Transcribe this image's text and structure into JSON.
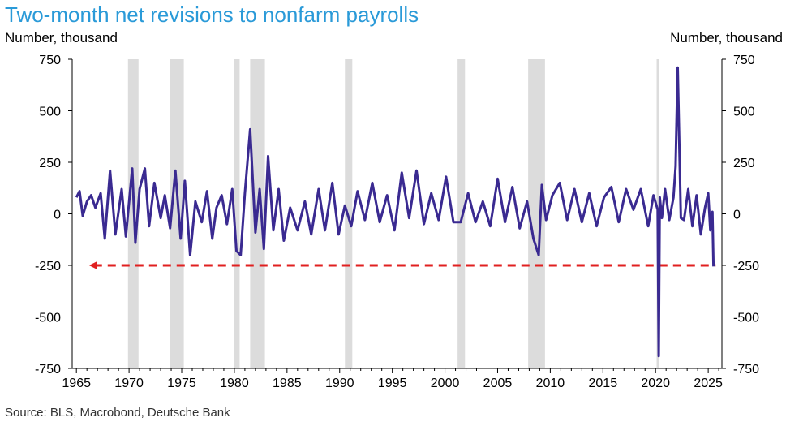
{
  "chart_data": {
    "type": "line",
    "title": "Two-month net revisions to nonfarm payrolls",
    "ylabel_left": "Number, thousand",
    "ylabel_right": "Number, thousand",
    "source": "Source: BLS, Macrobond, Deutsche Bank",
    "ylim": [
      -750,
      750
    ],
    "yticks": [
      750,
      500,
      250,
      0,
      -250,
      -500,
      -750
    ],
    "xlim": [
      1964.6,
      2026.3
    ],
    "xticks": [
      1965,
      1970,
      1975,
      1980,
      1985,
      1990,
      1995,
      2000,
      2005,
      2010,
      2015,
      2020,
      2025
    ],
    "grid": false,
    "colors": {
      "series": "#3a2a91",
      "recession": "#dcdcdc",
      "reference": "#e02020",
      "title": "#2a9ad8"
    },
    "recessions": [
      [
        1969.9,
        1970.9
      ],
      [
        1973.9,
        1975.2
      ],
      [
        1980.0,
        1980.5
      ],
      [
        1981.5,
        1982.9
      ],
      [
        1990.5,
        1991.2
      ],
      [
        2001.2,
        2001.9
      ],
      [
        2007.9,
        2009.5
      ],
      [
        2020.1,
        2020.3
      ]
    ],
    "reference_line": {
      "value": -250,
      "x_start": 1966.2,
      "x_end": 2025.7,
      "style": "dashed",
      "arrow": "left"
    },
    "series": [
      {
        "x": [
          1965.0,
          1965.3,
          1965.6,
          1966.0,
          1966.4,
          1966.8,
          1967.3,
          1967.7,
          1968.2,
          1968.7,
          1969.3,
          1969.7,
          1970.3,
          1970.6,
          1971.0,
          1971.5,
          1971.9,
          1972.4,
          1973.0,
          1973.4,
          1973.9,
          1974.4,
          1974.9,
          1975.3,
          1975.8,
          1976.3,
          1976.9,
          1977.4,
          1977.9,
          1978.3,
          1978.8,
          1979.3,
          1979.8,
          1980.2,
          1980.6,
          1981.0,
          1981.5,
          1982.0,
          1982.4,
          1982.8,
          1983.2,
          1983.7,
          1984.2,
          1984.7,
          1985.3,
          1986.0,
          1986.7,
          1987.3,
          1988.0,
          1988.6,
          1989.3,
          1989.9,
          1990.5,
          1991.1,
          1991.7,
          1992.4,
          1993.1,
          1993.8,
          1994.5,
          1995.2,
          1995.9,
          1996.6,
          1997.3,
          1998.0,
          1998.7,
          1999.4,
          2000.1,
          2000.8,
          2001.5,
          2002.2,
          2002.9,
          2003.6,
          2004.3,
          2005.0,
          2005.7,
          2006.4,
          2007.1,
          2007.8,
          2008.4,
          2008.9,
          2009.2,
          2009.6,
          2010.2,
          2010.9,
          2011.6,
          2012.3,
          2013.0,
          2013.7,
          2014.4,
          2015.1,
          2015.8,
          2016.5,
          2017.2,
          2017.9,
          2018.6,
          2019.3,
          2019.8,
          2020.2,
          2020.3,
          2020.4,
          2020.6,
          2020.9,
          2021.3,
          2021.7,
          2021.9,
          2022.1,
          2022.4,
          2022.7,
          2023.1,
          2023.5,
          2023.9,
          2024.3,
          2024.7,
          2025.0,
          2025.2,
          2025.4,
          2025.5
        ],
        "y": [
          80,
          110,
          -10,
          60,
          90,
          30,
          100,
          -120,
          210,
          -100,
          120,
          -110,
          220,
          -140,
          120,
          220,
          -60,
          150,
          -20,
          90,
          -70,
          210,
          -120,
          160,
          -200,
          60,
          -40,
          110,
          -120,
          30,
          90,
          -50,
          120,
          -180,
          -200,
          100,
          410,
          -90,
          120,
          -170,
          280,
          -80,
          120,
          -130,
          30,
          -80,
          60,
          -100,
          120,
          -80,
          150,
          -100,
          40,
          -60,
          110,
          -30,
          150,
          -40,
          90,
          -80,
          200,
          -20,
          210,
          -50,
          100,
          -30,
          180,
          -40,
          -40,
          100,
          -40,
          60,
          -60,
          170,
          -40,
          130,
          -70,
          60,
          -120,
          -200,
          140,
          -30,
          90,
          150,
          -30,
          120,
          -40,
          100,
          -60,
          80,
          130,
          -40,
          120,
          20,
          120,
          -60,
          90,
          20,
          -690,
          80,
          -20,
          120,
          -30,
          80,
          230,
          710,
          -20,
          -30,
          120,
          -60,
          90,
          -100,
          30,
          100,
          -80,
          10,
          -255
        ]
      }
    ]
  }
}
